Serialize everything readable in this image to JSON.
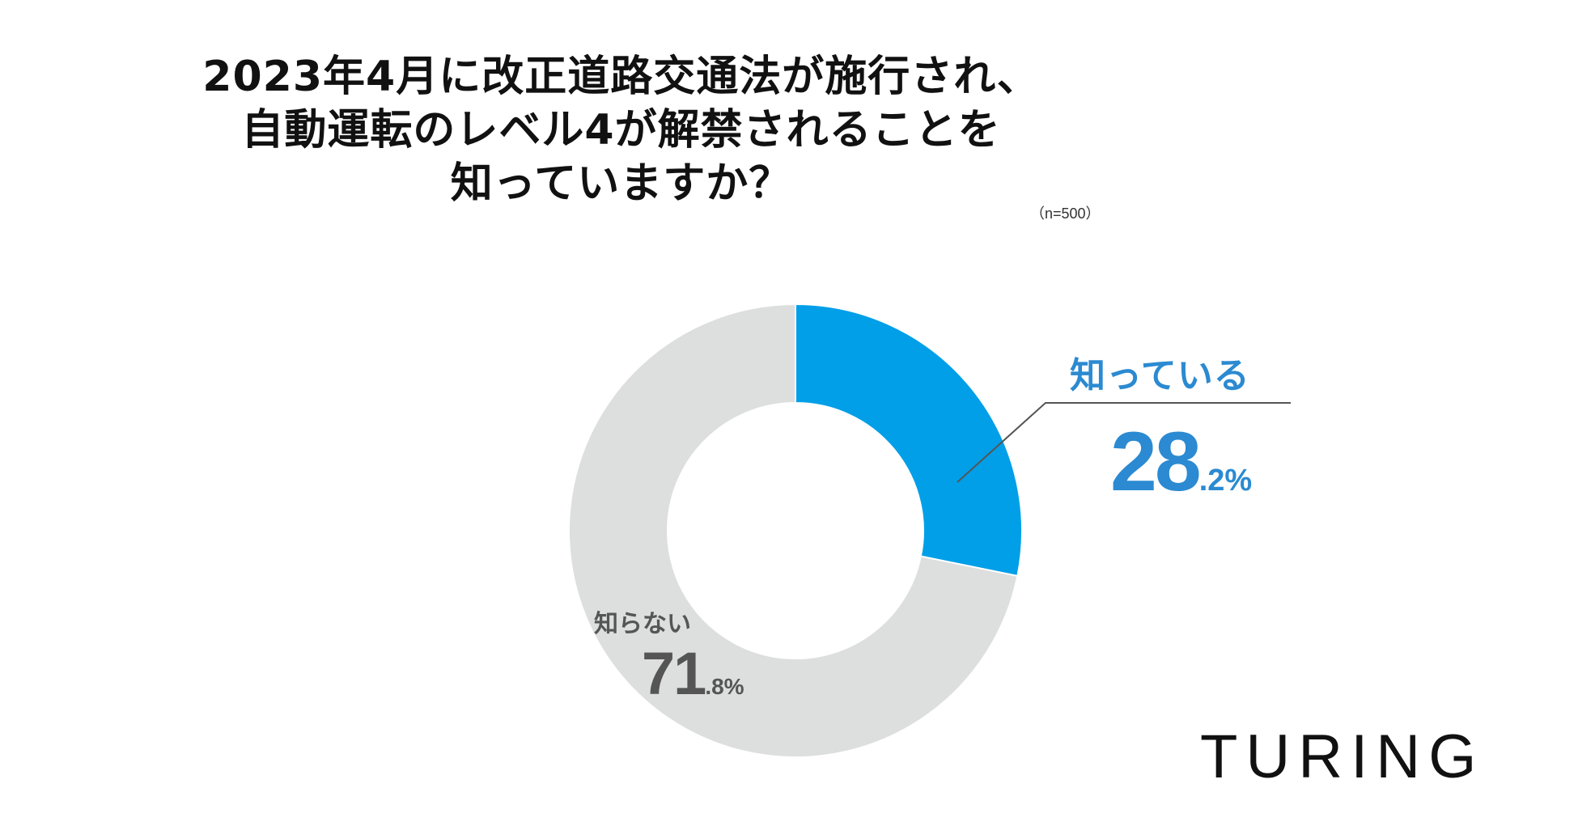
{
  "title_lines": [
    "2023年4月に改正道路交通法が施行され、",
    "自動運転のレベル4が解禁されることを",
    "知っていますか？"
  ],
  "sample_size": "（n=500）",
  "logo": "TURING",
  "chart_data": {
    "type": "pie",
    "donut": true,
    "start": "top",
    "direction": "clockwise",
    "slices": [
      {
        "label": "知っている",
        "value": 28.2,
        "value_int": "28",
        "value_dec": ".2%",
        "color": "#009fe8"
      },
      {
        "label": "知らない",
        "value": 71.8,
        "value_int": "71",
        "value_dec": ".8%",
        "color": "#dddede"
      }
    ],
    "colors": {
      "known_text": "#2b8ad1",
      "unknown_text": "#555555",
      "leader_line": "#555555"
    }
  }
}
